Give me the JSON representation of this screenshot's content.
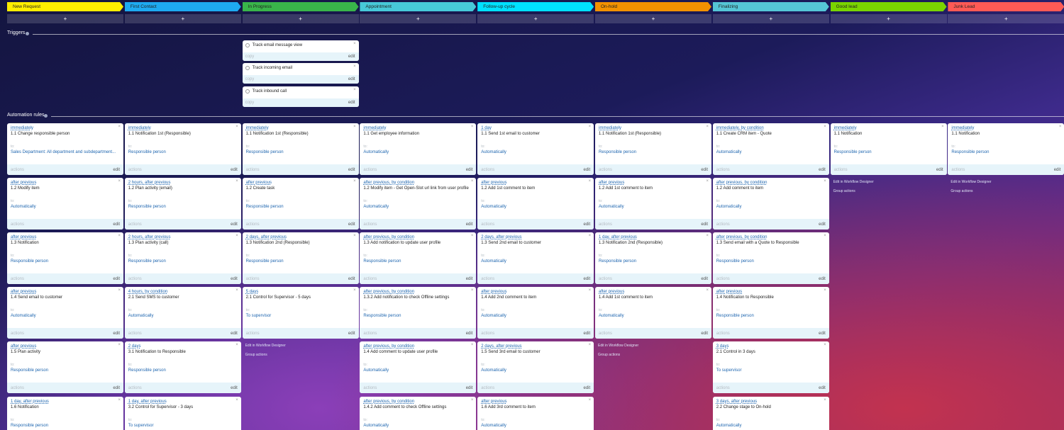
{
  "stages": [
    {
      "name": "New Request",
      "color": "#ffed00"
    },
    {
      "name": "First Contact",
      "color": "#1eaaf1"
    },
    {
      "name": "In Progress",
      "color": "#39b54a"
    },
    {
      "name": "Appointment",
      "color": "#47c9d8"
    },
    {
      "name": "Follow-up cycle",
      "color": "#00e1ff"
    },
    {
      "name": "On-hold",
      "color": "#f29100"
    },
    {
      "name": "Finalizing",
      "color": "#55c6d6"
    },
    {
      "name": "Good lead",
      "color": "#7ad400"
    },
    {
      "name": "Junk Lead",
      "color": "#ff5a55"
    }
  ],
  "labels": {
    "to": "to:",
    "actions": "actions",
    "edit": "edit",
    "copy": "copy",
    "designer": "Edit in Workflow Designer",
    "group": "Group actions"
  },
  "triggers": {
    "title": "Triggers",
    "column": 2,
    "items": [
      "Track email message view",
      "Track incoming email",
      "Track inbound call"
    ]
  },
  "rules": {
    "title": "Automation rules",
    "columns": [
      {
        "cards": [
          {
            "timing": "immediately",
            "title": "1.1 Change responsible person",
            "target": "Sales Department: All department and subdepartment..."
          },
          {
            "timing": "after previous",
            "title": "1.2 Modify item",
            "target": "Automatically"
          },
          {
            "timing": "after previous",
            "title": "1.3 Notification",
            "target": "Responsible person"
          },
          {
            "timing": "after previous",
            "title": "1.4 Send email to customer",
            "target": "Automatically"
          },
          {
            "timing": "after previous",
            "title": "1.5 Plan activity",
            "target": "Responsible person"
          },
          {
            "timing": "1 day, after previous",
            "title": "1.6 Notification",
            "target": "Responsible person"
          }
        ],
        "footer": false
      },
      {
        "cards": [
          {
            "timing": "immediately",
            "title": "1.1 Notification 1st (Responsible)",
            "target": "Responsible person"
          },
          {
            "timing": "2 hours, after previous",
            "title": "1.2 Plan activity (email)",
            "target": "Responsible person"
          },
          {
            "timing": "2 hours, after previous",
            "title": "1.3 Plan activity (call)",
            "target": "Responsible person"
          },
          {
            "timing": "4 hours, by condition",
            "title": "2.1 Send SMS to customer",
            "target": "Automatically"
          },
          {
            "timing": "2 days",
            "title": "3.1 Notification to Responsible",
            "target": "Responsible person"
          },
          {
            "timing": "1 day, after previous",
            "title": "3.2 Control for Supervisor - 3 days",
            "target": "To supervisor"
          }
        ],
        "footer": false
      },
      {
        "cards": [
          {
            "timing": "immediately",
            "title": "1.1 Notification 1st (Responsible)",
            "target": "Responsible person"
          },
          {
            "timing": "after previous",
            "title": "1.2 Create task",
            "target": "Responsible person"
          },
          {
            "timing": "2 days, after previous",
            "title": "1.3 Notification 2nd (Responsible)",
            "target": "Responsible person"
          },
          {
            "timing": "5 days",
            "title": "2.1 Control for Supervisor - 5 days",
            "target": "To supervisor"
          }
        ],
        "footer": true
      },
      {
        "cards": [
          {
            "timing": "immediately",
            "title": "1.1 Get employee information",
            "target": "Automatically"
          },
          {
            "timing": "after previous, by condition",
            "title": "1.2 Modify item - Get Open-Slot url link from user profile",
            "target": "Automatically"
          },
          {
            "timing": "after previous, by condition",
            "title": "1.3 Add notification to update user profile",
            "target": "Responsible person"
          },
          {
            "timing": "after previous, by condition",
            "title": "1.3.2 Add notification to check Offline settings",
            "target": "Responsible person"
          },
          {
            "timing": "after previous, by condition",
            "title": "1.4 Add comment to update user profile",
            "target": "Automatically"
          },
          {
            "timing": "after previous, by condition",
            "title": "1.4.2 Add comment to check Offline settings",
            "target": "Automatically"
          }
        ],
        "footer": false
      },
      {
        "cards": [
          {
            "timing": "1 day",
            "title": "1.1 Send 1st email to customer",
            "target": "Automatically"
          },
          {
            "timing": "after previous",
            "title": "1.2 Add 1st comment to item",
            "target": "Automatically"
          },
          {
            "timing": "2 days, after previous",
            "title": "1.3 Send 2nd email to customer",
            "target": "Automatically"
          },
          {
            "timing": "after previous",
            "title": "1.4 Add 2nd comment to item",
            "target": "Automatically"
          },
          {
            "timing": "2 days, after previous",
            "title": "1.5 Send 3rd email to customer",
            "target": "Automatically"
          },
          {
            "timing": "after previous",
            "title": "1.6 Add 3rd comment to item",
            "target": "Automatically"
          }
        ],
        "footer": false
      },
      {
        "cards": [
          {
            "timing": "immediately",
            "title": "1.1 Notification 1st (Responsible)",
            "target": "Responsible person"
          },
          {
            "timing": "after previous",
            "title": "1.2 Add 1st comment to item",
            "target": "Automatically"
          },
          {
            "timing": "1 day, after previous",
            "title": "1.3 Notification 2nd (Responsible)",
            "target": "Responsible person"
          },
          {
            "timing": "after previous",
            "title": "1.4 Add 1st comment to item",
            "target": "Automatically"
          }
        ],
        "footer": true
      },
      {
        "cards": [
          {
            "timing": "immediately, by condition",
            "title": "1.1 Create CRM item - Quote",
            "target": "Automatically"
          },
          {
            "timing": "after previous, by condition",
            "title": "1.2 Add comment to item",
            "target": "Automatically"
          },
          {
            "timing": "after previous, by condition",
            "title": "1.3 Send email with a Quote to Responsible",
            "target": "Responsible person"
          },
          {
            "timing": "after previous",
            "title": "1.4 Notification to Responsible",
            "target": "Responsible person"
          },
          {
            "timing": "3 days",
            "title": "2.1 Control in 3 days",
            "target": "To supervisor"
          },
          {
            "timing": "3 days, after previous",
            "title": "2.2 Change stage to On-hold",
            "target": "Automatically"
          }
        ],
        "footer": false
      },
      {
        "cards": [
          {
            "timing": "immediately",
            "title": "1.1 Notification",
            "target": "Responsible person"
          }
        ],
        "footer": true
      },
      {
        "cards": [
          {
            "timing": "immediately",
            "title": "1.1 Notification",
            "target": "Responsible person"
          }
        ],
        "footer": true
      }
    ]
  }
}
